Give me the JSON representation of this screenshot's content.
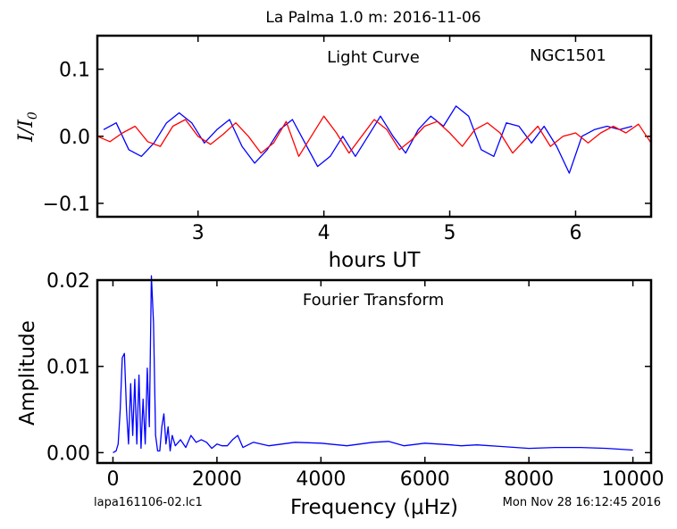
{
  "figure": {
    "title": "La Palma 1.0 m:  2016-11-06",
    "footer_left": "lapa161106-02.lc1",
    "footer_right": "Mon Nov 28 16:12:45 2016"
  },
  "chart_data": [
    {
      "type": "line",
      "panel": "light-curve",
      "annotations": [
        "Light Curve",
        "NGC1501"
      ],
      "xlabel": "hours UT",
      "ylabel": "I/I",
      "ylabel_sub": "0",
      "xlim": [
        2.2,
        6.6
      ],
      "ylim": [
        -0.12,
        0.15
      ],
      "xticks": [
        3,
        4,
        5,
        6
      ],
      "xtick_labels": [
        "3",
        "4",
        "5",
        "6"
      ],
      "yticks": [
        -0.1,
        0.0,
        0.1
      ],
      "ytick_labels": [
        "−0.1",
        "0.0",
        "0.1"
      ],
      "grid": false,
      "series": [
        {
          "color": "#0000ff",
          "x": [
            2.25,
            2.35,
            2.45,
            2.55,
            2.65,
            2.75,
            2.85,
            2.95,
            3.05,
            3.15,
            3.25,
            3.35,
            3.45,
            3.55,
            3.65,
            3.75,
            3.85,
            3.95,
            4.05,
            4.15,
            4.25,
            4.35,
            4.45,
            4.55,
            4.65,
            4.75,
            4.85,
            4.95,
            5.05,
            5.15,
            5.25,
            5.35,
            5.45,
            5.55,
            5.65,
            5.75,
            5.85,
            5.95,
            6.05,
            6.15,
            6.25,
            6.35,
            6.45
          ],
          "y": [
            0.01,
            0.02,
            -0.02,
            -0.03,
            -0.01,
            0.02,
            0.035,
            0.02,
            -0.01,
            0.01,
            0.025,
            -0.015,
            -0.04,
            -0.02,
            0.01,
            0.025,
            -0.01,
            -0.045,
            -0.03,
            0.0,
            -0.03,
            0.0,
            0.03,
            0.0,
            -0.025,
            0.01,
            0.03,
            0.015,
            0.045,
            0.03,
            -0.02,
            -0.03,
            0.02,
            0.015,
            -0.01,
            0.015,
            -0.015,
            -0.055,
            0.0,
            0.01,
            0.015,
            0.01,
            0.015
          ]
        },
        {
          "color": "#ff0000",
          "x": [
            2.2,
            2.3,
            2.4,
            2.5,
            2.6,
            2.7,
            2.8,
            2.9,
            3.0,
            3.1,
            3.2,
            3.3,
            3.4,
            3.5,
            3.6,
            3.7,
            3.8,
            3.9,
            4.0,
            4.1,
            4.2,
            4.3,
            4.4,
            4.5,
            4.6,
            4.7,
            4.8,
            4.9,
            5.0,
            5.1,
            5.2,
            5.3,
            5.4,
            5.5,
            5.6,
            5.7,
            5.8,
            5.9,
            6.0,
            6.1,
            6.2,
            6.3,
            6.4,
            6.5,
            6.6
          ],
          "y": [
            0.0,
            -0.008,
            0.005,
            0.015,
            -0.008,
            -0.015,
            0.015,
            0.025,
            0.0,
            -0.012,
            0.003,
            0.02,
            0.0,
            -0.025,
            -0.01,
            0.022,
            -0.03,
            0.0,
            0.03,
            0.005,
            -0.025,
            0.0,
            0.025,
            0.01,
            -0.02,
            -0.005,
            0.015,
            0.022,
            0.005,
            -0.015,
            0.01,
            0.02,
            0.005,
            -0.025,
            -0.005,
            0.015,
            -0.015,
            0.0,
            0.005,
            -0.01,
            0.005,
            0.015,
            0.005,
            0.018,
            -0.01
          ]
        }
      ]
    },
    {
      "type": "line",
      "panel": "fourier-transform",
      "annotations": [
        "Fourier Transform"
      ],
      "xlabel": "Frequency (μHz)",
      "ylabel": "Amplitude",
      "xlim": [
        -300,
        10350
      ],
      "ylim": [
        -0.0012,
        0.02
      ],
      "xticks": [
        0,
        2000,
        4000,
        6000,
        8000,
        10000
      ],
      "xtick_labels": [
        "0",
        "2000",
        "4000",
        "6000",
        "8000",
        "10000"
      ],
      "yticks": [
        0.0,
        0.01,
        0.02
      ],
      "ytick_labels": [
        "0.00",
        "0.01",
        "0.02"
      ],
      "grid": false,
      "series": [
        {
          "color": "#0000ff",
          "x": [
            0,
            60,
            100,
            140,
            180,
            220,
            260,
            300,
            340,
            380,
            420,
            460,
            500,
            540,
            580,
            620,
            660,
            700,
            740,
            780,
            820,
            860,
            900,
            940,
            980,
            1020,
            1060,
            1100,
            1140,
            1200,
            1300,
            1400,
            1500,
            1600,
            1700,
            1800,
            1900,
            2000,
            2100,
            2200,
            2300,
            2400,
            2500,
            2700,
            3000,
            3500,
            4000,
            4500,
            5000,
            5300,
            5600,
            6000,
            6500,
            6700,
            7000,
            7500,
            8000,
            8500,
            9000,
            9500,
            10000
          ],
          "y": [
            0.0,
            0.0002,
            0.001,
            0.005,
            0.011,
            0.0115,
            0.005,
            0.001,
            0.008,
            0.002,
            0.0085,
            0.001,
            0.009,
            0.0005,
            0.0062,
            0.001,
            0.0098,
            0.003,
            0.0205,
            0.015,
            0.002,
            0.0002,
            0.0002,
            0.003,
            0.0045,
            0.001,
            0.003,
            0.0002,
            0.002,
            0.0008,
            0.0015,
            0.0006,
            0.002,
            0.0012,
            0.0015,
            0.0012,
            0.0005,
            0.001,
            0.0008,
            0.0008,
            0.0015,
            0.002,
            0.0006,
            0.0012,
            0.0008,
            0.0012,
            0.0011,
            0.0008,
            0.0012,
            0.0013,
            0.0008,
            0.0011,
            0.0009,
            0.0008,
            0.0009,
            0.0007,
            0.0005,
            0.0006,
            0.0006,
            0.0005,
            0.0003
          ]
        }
      ]
    }
  ]
}
